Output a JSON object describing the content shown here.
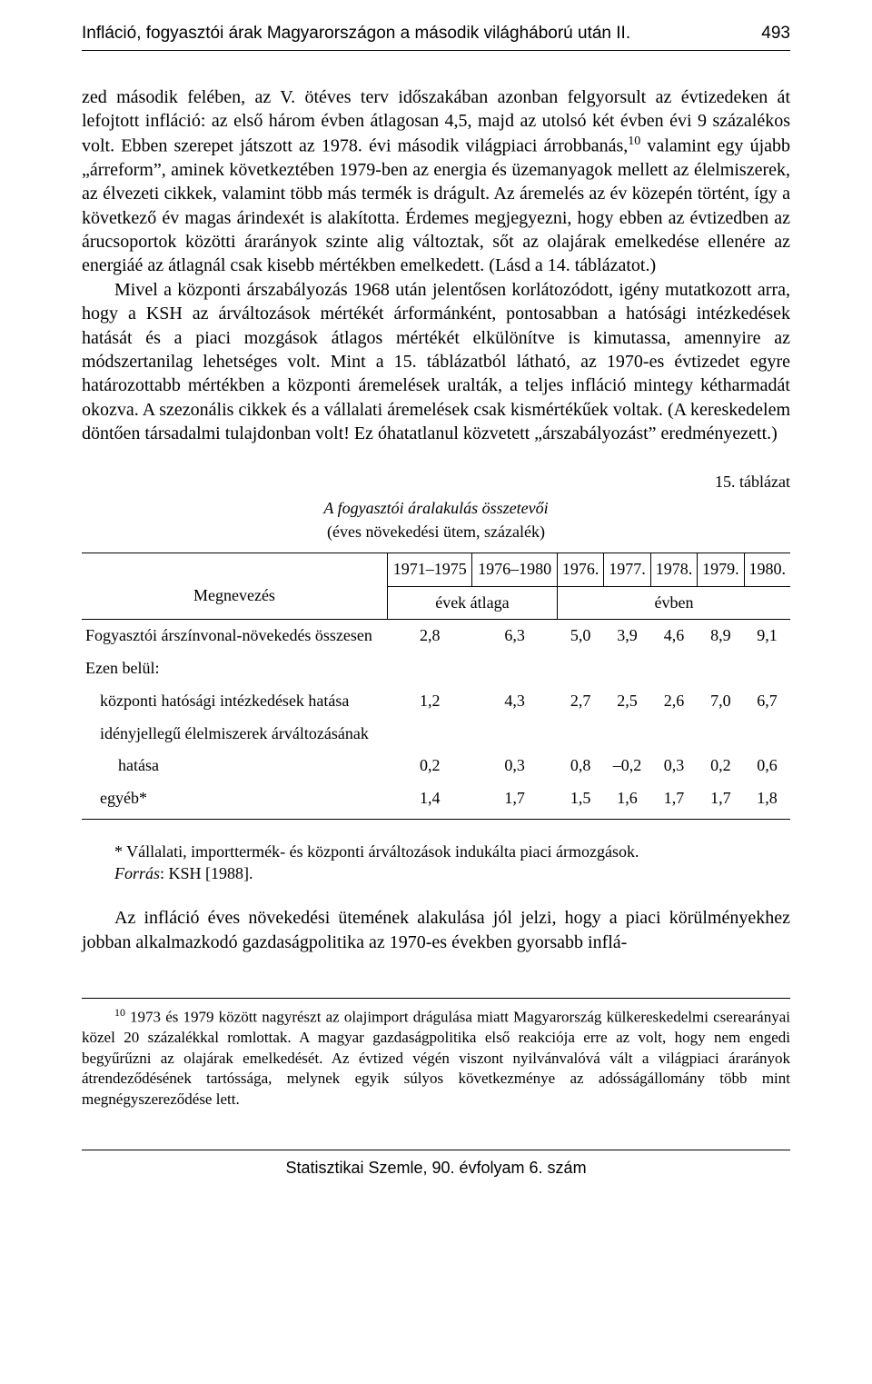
{
  "header": {
    "running_title": "Infláció, fogyasztói árak Magyarországon a második világháború után II.",
    "page_number": "493"
  },
  "paragraphs": {
    "p1": "zed második felében, az V. ötéves terv időszakában azonban felgyorsult az évtizedeken át lefojtott infláció: az első három évben átlagosan 4,5, majd az utolsó két évben évi 9 százalékos volt. Ebben szerepet játszott az 1978. évi második világpiaci árrobbanás,",
    "p1_after_sup": " valamint egy újabb „árreform”, aminek következtében 1979-ben az energia és üzemanyagok mellett az élelmiszerek, az élvezeti cikkek, valamint több más termék is drágult. Az áremelés az év közepén történt, így a következő év magas árindexét is alakította. Érdemes megjegyezni, hogy ebben az évtizedben az árucsoportok közötti árarányok szinte alig változtak, sőt az olajárak emelkedése ellenére az energiáé az átlagnál csak kisebb mértékben emelkedett. (Lásd a 14. táblázatot.)",
    "sup1": "10",
    "p2": "Mivel a központi árszabályozás 1968 után jelentősen korlátozódott, igény mutatkozott arra, hogy a KSH az árváltozások mértékét árformánként, pontosabban a hatósági intézkedések hatását és a piaci mozgások átlagos mértékét elkülönítve is kimutassa, amennyire az módszertanilag lehetséges volt. Mint a 15. táblázatból látható, az 1970-es évtizedet egyre határozottabb mértékben a központi áremelések uralták, a teljes infláció mintegy kétharmadát okozva. A szezonális cikkek és a vállalati áremelések csak kismértékűek voltak. (A kereskedelem döntően társadalmi tulajdonban volt! Ez óhatatlanul közvetett „árszabályozást” eredményezett.)"
  },
  "table": {
    "label": "15. táblázat",
    "title": "A fogyasztói áralakulás összetevői",
    "subtitle": "(éves növekedési ütem, százalék)",
    "col_name": "Megnevezés",
    "years": [
      "1971–1975",
      "1976–1980",
      "1976.",
      "1977.",
      "1978.",
      "1979.",
      "1980."
    ],
    "group1": "évek átlaga",
    "group2": "évben",
    "rows": [
      {
        "label": "Fogyasztói árszínvonal-növekedés összesen",
        "cells": [
          "2,8",
          "6,3",
          "5,0",
          "3,9",
          "4,6",
          "8,9",
          "9,1"
        ],
        "cls": ""
      },
      {
        "label": "Ezen belül:",
        "cells": [
          "",
          "",
          "",
          "",
          "",
          "",
          ""
        ],
        "cls": ""
      },
      {
        "label": "központi hatósági intézkedések hatása",
        "cells": [
          "1,2",
          "4,3",
          "2,7",
          "2,5",
          "2,6",
          "7,0",
          "6,7"
        ],
        "cls": "sub"
      },
      {
        "label": "idényjellegű élelmiszerek árváltozásának",
        "cells": [
          "",
          "",
          "",
          "",
          "",
          "",
          ""
        ],
        "cls": "sub"
      },
      {
        "label": "hatása",
        "cells": [
          "0,2",
          "0,3",
          "0,8",
          "–0,2",
          "0,3",
          "0,2",
          "0,6"
        ],
        "cls": "sub2"
      },
      {
        "label": "egyéb*",
        "cells": [
          "1,4",
          "1,7",
          "1,5",
          "1,6",
          "1,7",
          "1,7",
          "1,8"
        ],
        "cls": "sub"
      }
    ]
  },
  "table_footnotes": {
    "note": "* Vállalati, importtermék- és központi árváltozások indukálta piaci ármozgások.",
    "source_label": "Forrás",
    "source_value": ": KSH [1988]."
  },
  "after_table": {
    "p3": "Az infláció éves növekedési ütemének alakulása jól jelzi, hogy a piaci körülményekhez jobban alkalmazkodó gazdaságpolitika az 1970-es években gyorsabb inflá-"
  },
  "bottom_footnote": {
    "sup": "10",
    "text": " 1973 és 1979 között nagyrészt az olajimport drágulása miatt Magyarország külkereskedelmi cserearányai közel 20 százalékkal romlottak. A magyar gazdaságpolitika első reakciója erre az volt, hogy nem engedi begyűrűzni az olajárak emelkedését. Az évtized végén viszont nyilvánvalóvá vált a világpiaci árarányok átrendeződésének tartóssága, melynek egyik súlyos következménye az adósságállomány több mint megnégyszereződése lett."
  },
  "footer": {
    "text": "Statisztikai Szemle, 90. évfolyam 6. szám"
  }
}
